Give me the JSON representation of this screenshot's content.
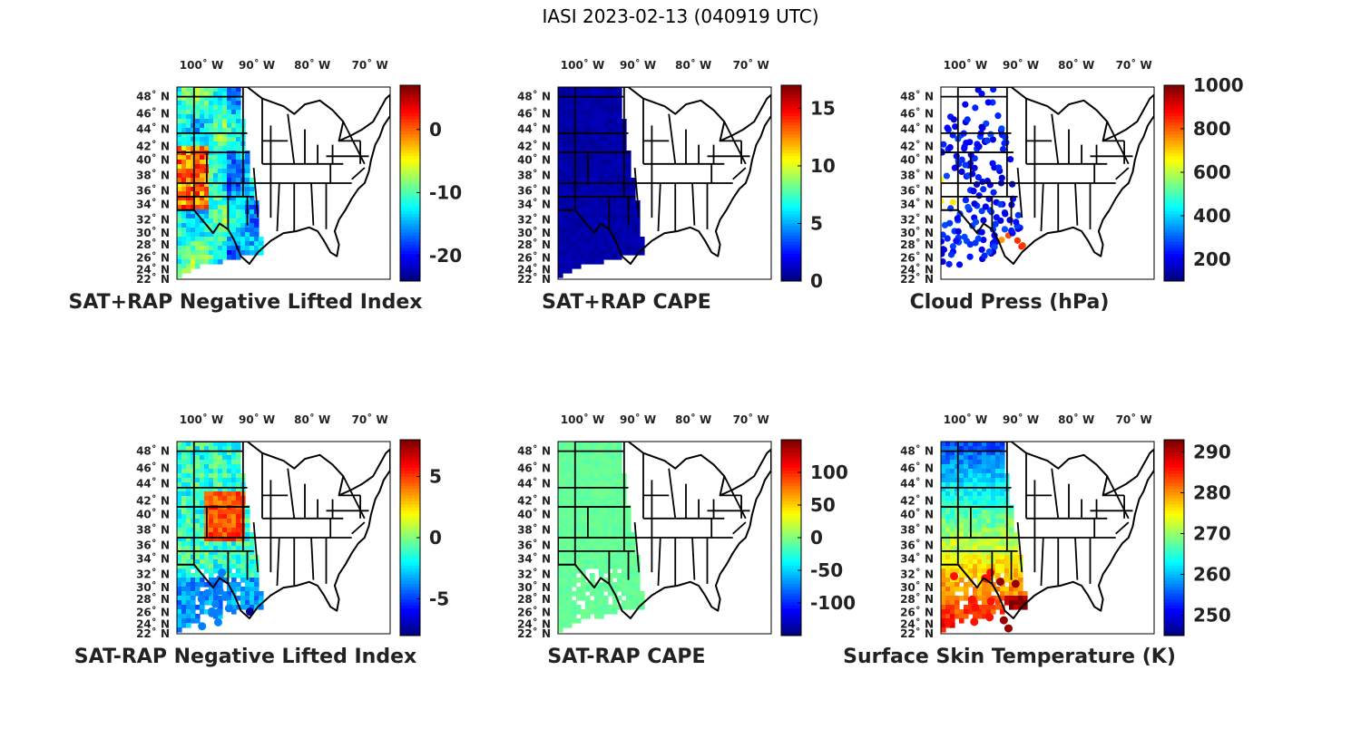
{
  "title": "IASI 2023-02-13 (040919 UTC)",
  "chart_data": [
    {
      "type": "heatmap",
      "title": "SAT+RAP Negative Lifted Index",
      "xticks": [
        "100˚ W",
        "90˚ W",
        "80˚ W",
        "70˚ W"
      ],
      "yticks": [
        "48˚ N",
        "46˚ N",
        "44˚ N",
        "42˚ N",
        "40˚ N",
        "38˚ N",
        "36˚ N",
        "34˚ N",
        "32˚ N",
        "30˚ N",
        "28˚ N",
        "26˚ N",
        "24˚ N",
        "22˚ N"
      ],
      "colorbar": {
        "min": -24,
        "max": 7,
        "ticks": [
          0,
          -10,
          -20
        ]
      },
      "field": "swath"
    },
    {
      "type": "heatmap",
      "title": "SAT+RAP CAPE",
      "xticks": [
        "100˚ W",
        "90˚ W",
        "80˚ W",
        "70˚ W"
      ],
      "yticks": [
        "48˚ N",
        "46˚ N",
        "44˚ N",
        "42˚ N",
        "40˚ N",
        "38˚ N",
        "36˚ N",
        "34˚ N",
        "32˚ N",
        "30˚ N",
        "28˚ N",
        "26˚ N",
        "24˚ N",
        "22˚ N"
      ],
      "colorbar": {
        "min": 0,
        "max": 17,
        "ticks": [
          15,
          10,
          5,
          0
        ]
      },
      "field": "uniform-low"
    },
    {
      "type": "scatter",
      "title": "Cloud Press (hPa)",
      "xticks": [
        "100˚ W",
        "90˚ W",
        "80˚ W",
        "70˚ W"
      ],
      "yticks": [
        "48˚ N",
        "46˚ N",
        "44˚ N",
        "42˚ N",
        "40˚ N",
        "38˚ N",
        "36˚ N",
        "34˚ N",
        "32˚ N",
        "30˚ N",
        "28˚ N",
        "26˚ N",
        "24˚ N",
        "22˚ N"
      ],
      "colorbar": {
        "min": 100,
        "max": 1000,
        "ticks": [
          1000,
          800,
          600,
          400,
          200
        ]
      },
      "field": "clouds"
    },
    {
      "type": "heatmap",
      "title": "SAT-RAP Negative Lifted Index",
      "xticks": [
        "100˚ W",
        "90˚ W",
        "80˚ W",
        "70˚ W"
      ],
      "yticks": [
        "48˚ N",
        "46˚ N",
        "44˚ N",
        "42˚ N",
        "40˚ N",
        "38˚ N",
        "36˚ N",
        "34˚ N",
        "32˚ N",
        "30˚ N",
        "28˚ N",
        "26˚ N",
        "24˚ N",
        "22˚ N"
      ],
      "colorbar": {
        "min": -8,
        "max": 8,
        "ticks": [
          5,
          0,
          -5
        ]
      },
      "field": "diff"
    },
    {
      "type": "heatmap",
      "title": "SAT-RAP CAPE",
      "xticks": [
        "100˚ W",
        "90˚ W",
        "80˚ W",
        "70˚ W"
      ],
      "yticks": [
        "48˚ N",
        "46˚ N",
        "44˚ N",
        "42˚ N",
        "40˚ N",
        "38˚ N",
        "36˚ N",
        "34˚ N",
        "32˚ N",
        "30˚ N",
        "28˚ N",
        "26˚ N",
        "24˚ N",
        "22˚ N"
      ],
      "colorbar": {
        "min": -150,
        "max": 150,
        "ticks": [
          100,
          50,
          0,
          -50,
          -100
        ]
      },
      "field": "uniform-mid"
    },
    {
      "type": "heatmap",
      "title": "Surface Skin Temperature (K)",
      "xticks": [
        "100˚ W",
        "90˚ W",
        "80˚ W",
        "70˚ W"
      ],
      "yticks": [
        "48˚ N",
        "46˚ N",
        "44˚ N",
        "42˚ N",
        "40˚ N",
        "38˚ N",
        "36˚ N",
        "34˚ N",
        "32˚ N",
        "30˚ N",
        "28˚ N",
        "26˚ N",
        "24˚ N",
        "22˚ N"
      ],
      "colorbar": {
        "min": 245,
        "max": 293,
        "ticks": [
          290,
          280,
          270,
          260,
          250
        ]
      },
      "field": "temp"
    }
  ]
}
